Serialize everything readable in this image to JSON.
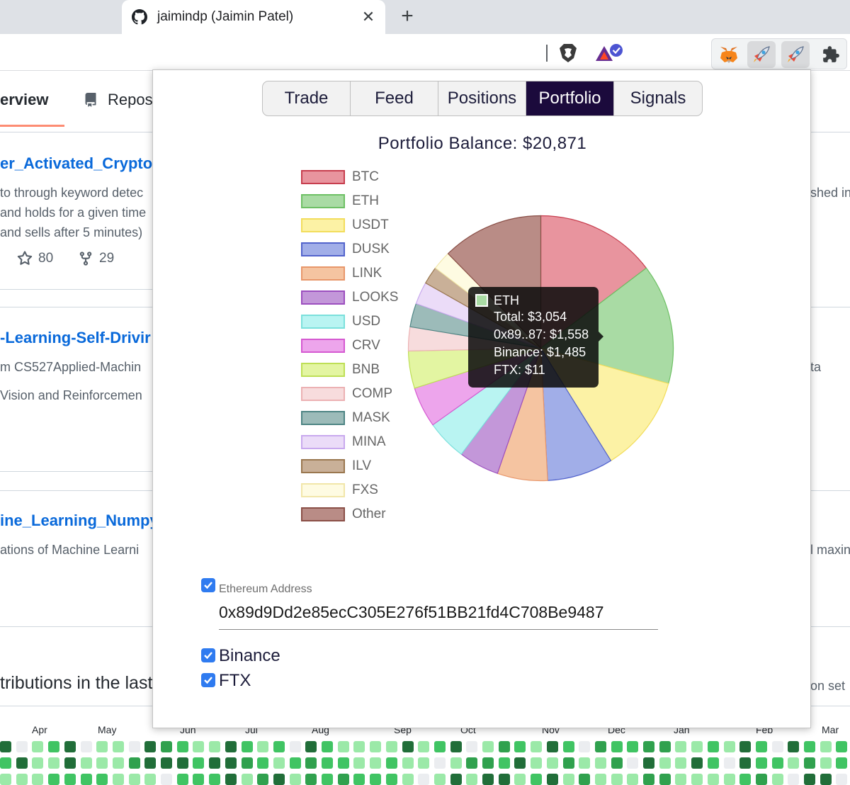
{
  "browser": {
    "tab_title": "jaimindp (Jaimin Patel)",
    "tab_close": "✕",
    "new_tab": "+"
  },
  "github": {
    "nav": {
      "overview": "erview",
      "repos": "Repos"
    },
    "repos": [
      {
        "title": "er_Activated_Crypto",
        "desc": [
          "to through keyword detec",
          "and holds for a given time",
          "and sells after 5 minutes)"
        ],
        "stars": "80",
        "forks": "29",
        "right_text": "shed in"
      },
      {
        "title": "-Learning-Self-Drivir",
        "desc": [
          "m CS527Applied-Machin",
          "Vision and Reinforcemen"
        ],
        "right_text": "ta"
      },
      {
        "title": "ine_Learning_Numpy",
        "desc": [
          "ations of Machine Learni"
        ],
        "right_text": "l maxin"
      }
    ],
    "contrib_heading": "tributions in the last",
    "contrib_right": "ion set",
    "months": [
      "Apr",
      "May",
      "Jun",
      "Jul",
      "Aug",
      "Sep",
      "Oct",
      "Nov",
      "Dec",
      "Jan",
      "Feb",
      "Mar"
    ]
  },
  "popup": {
    "tabs": [
      "Trade",
      "Feed",
      "Positions",
      "Portfolio",
      "Signals"
    ],
    "active_tab": "Portfolio",
    "balance_title": "Portfolio Balance: $20,871",
    "ethereum": {
      "checked": true,
      "label": "Ethereum Address",
      "value": "0x89d9Dd2e85ecC305E276f51BB21fd4C708Be9487"
    },
    "exchanges": [
      {
        "label": "Binance",
        "checked": true
      },
      {
        "label": "FTX",
        "checked": true
      }
    ],
    "tooltip": {
      "label": "ETH",
      "color": "#a9dba4",
      "lines": [
        "Total: $3,054",
        "0x89..87: $1,558",
        "Binance: $1,485",
        "FTX: $11"
      ]
    }
  },
  "chart_data": {
    "type": "pie",
    "title": "Portfolio Balance: $20,871",
    "legend_position": "left",
    "categories": [
      "BTC",
      "ETH",
      "USDT",
      "DUSK",
      "LINK",
      "LOOKS",
      "USD",
      "CRV",
      "BNB",
      "COMP",
      "MASK",
      "MINA",
      "ILV",
      "FXS",
      "Other"
    ],
    "values": [
      3060,
      3054,
      2470,
      1680,
      1280,
      1030,
      1030,
      1030,
      950,
      610,
      600,
      570,
      450,
      480,
      2577
    ],
    "colors": [
      "#e8949e",
      "#a9dba4",
      "#fcf2a5",
      "#a1aee8",
      "#f5c4a1",
      "#c397d9",
      "#b9f4f2",
      "#eda5ec",
      "#e3f5a2",
      "#f7dcdd",
      "#9cbbb9",
      "#ebdcf8",
      "#c9b098",
      "#fefbe2",
      "#b98c86"
    ],
    "borders": [
      "#c73e4e",
      "#6dc064",
      "#f2dd5c",
      "#5263cc",
      "#e8976b",
      "#9c4fbf",
      "#7be0dc",
      "#d559d1",
      "#bedf56",
      "#ecb1b3",
      "#4e8584",
      "#c8a9ee",
      "#9a774f",
      "#f1e6a9",
      "#8a4f47"
    ]
  }
}
